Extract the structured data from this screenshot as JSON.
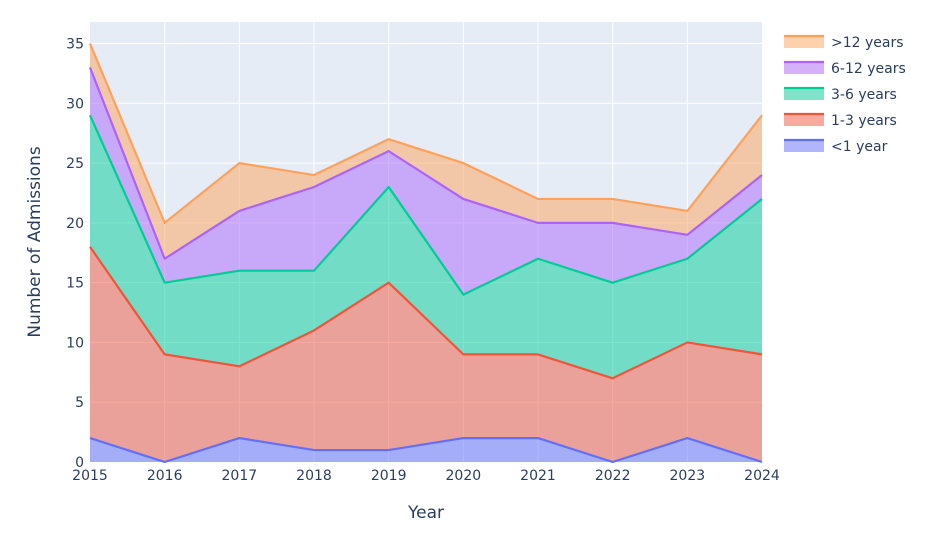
{
  "chart_data": {
    "type": "area",
    "stacked": true,
    "title": "",
    "xlabel": "Year",
    "ylabel": "Number of Admissions",
    "x": [
      2015,
      2016,
      2017,
      2018,
      2019,
      2020,
      2021,
      2022,
      2023,
      2024
    ],
    "xticks": [
      "2015",
      "2016",
      "2017",
      "2018",
      "2019",
      "2020",
      "2021",
      "2022",
      "2023",
      "2024"
    ],
    "yticks": [
      0,
      5,
      10,
      15,
      20,
      25,
      30,
      35
    ],
    "xlim": [
      2015,
      2024
    ],
    "ylim": [
      0,
      36.8
    ],
    "grid": true,
    "legend_position": "right",
    "series": [
      {
        "name": "<1 year",
        "color": "#636efa",
        "values": [
          2,
          0,
          2,
          1,
          1,
          2,
          2,
          0,
          2,
          0
        ]
      },
      {
        "name": "1-3 years",
        "color": "#ef553b",
        "values": [
          16,
          9,
          6,
          10,
          14,
          7,
          7,
          7,
          8,
          9
        ]
      },
      {
        "name": "3-6 years",
        "color": "#00cc96",
        "values": [
          11,
          6,
          8,
          5,
          8,
          5,
          8,
          8,
          7,
          13
        ]
      },
      {
        "name": "6-12 years",
        "color": "#ab63fa",
        "values": [
          4,
          2,
          5,
          7,
          3,
          8,
          3,
          5,
          2,
          2
        ]
      },
      {
        "name": ">12 years",
        "color": "#ffa15a",
        "values": [
          2,
          3,
          4,
          1,
          1,
          3,
          2,
          2,
          2,
          5
        ]
      }
    ]
  }
}
